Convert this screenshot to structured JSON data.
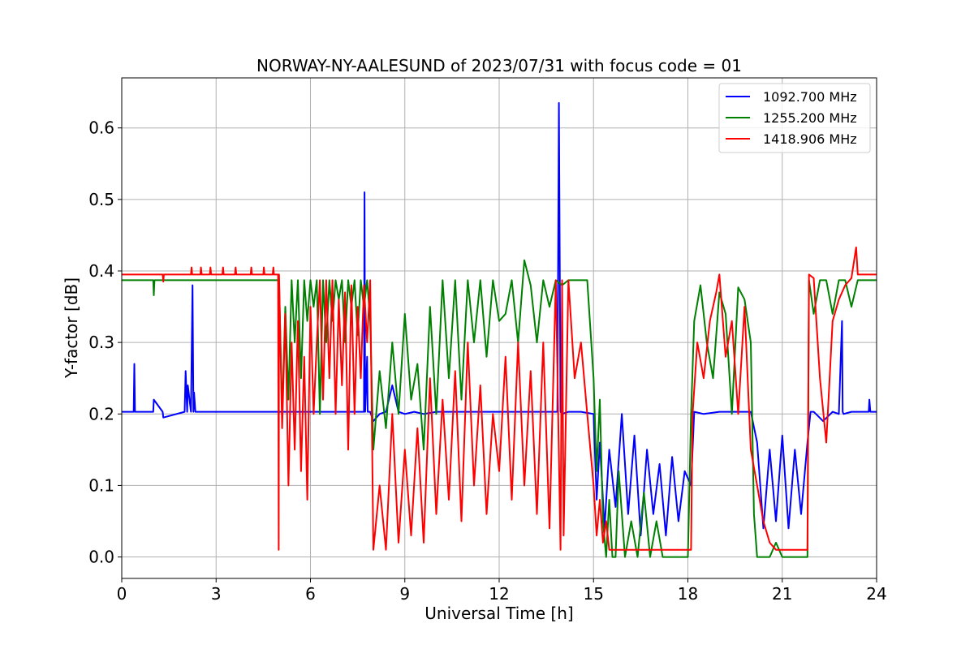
{
  "chart_data": {
    "type": "line",
    "title": "NORWAY-NY-AALESUND of 2023/07/31 with focus code = 01",
    "xlabel": "Universal Time [h]",
    "ylabel": "Y-factor [dB]",
    "xlim": [
      0,
      24
    ],
    "ylim": [
      -0.03,
      0.67
    ],
    "xticks": [
      0,
      3,
      6,
      9,
      12,
      15,
      18,
      21,
      24
    ],
    "yticks": [
      0.0,
      0.1,
      0.2,
      0.3,
      0.4,
      0.5,
      0.6
    ],
    "ytick_labels": [
      "0.0",
      "0.1",
      "0.2",
      "0.3",
      "0.4",
      "0.5",
      "0.6"
    ],
    "grid": true,
    "legend_position": "top-right",
    "series": [
      {
        "name": "1092.700 MHz",
        "color": "#0000ff",
        "x": [
          0,
          0.38,
          0.4,
          0.42,
          1.0,
          1.02,
          1.3,
          1.32,
          2.0,
          2.03,
          2.08,
          2.1,
          2.2,
          2.25,
          2.28,
          2.3,
          2.34,
          2.5,
          5.0,
          5.05,
          5.3,
          6.0,
          7.6,
          7.7,
          7.72,
          7.74,
          7.8,
          7.82,
          7.9,
          8.0,
          8.2,
          8.4,
          8.6,
          8.8,
          9.0,
          9.3,
          9.6,
          10.0,
          10.5,
          11.0,
          11.5,
          12.0,
          12.5,
          13.0,
          13.5,
          13.85,
          13.9,
          13.95,
          14.0,
          14.2,
          14.6,
          15.0,
          15.1,
          15.2,
          15.35,
          15.5,
          15.7,
          15.9,
          16.1,
          16.3,
          16.5,
          16.7,
          16.9,
          17.1,
          17.3,
          17.5,
          17.7,
          17.9,
          18.1,
          18.2,
          18.5,
          19.0,
          19.5,
          20.0,
          20.2,
          20.4,
          20.6,
          20.8,
          21.0,
          21.2,
          21.4,
          21.6,
          21.8,
          21.9,
          22.0,
          22.3,
          22.6,
          22.8,
          22.9,
          22.92,
          22.95,
          23.2,
          23.5,
          23.75,
          23.77,
          23.8,
          24.0
        ],
        "y": [
          0.203,
          0.203,
          0.27,
          0.203,
          0.203,
          0.22,
          0.203,
          0.195,
          0.203,
          0.26,
          0.203,
          0.24,
          0.203,
          0.38,
          0.203,
          0.23,
          0.203,
          0.203,
          0.203,
          0.203,
          0.203,
          0.203,
          0.203,
          0.203,
          0.51,
          0.203,
          0.28,
          0.203,
          0.203,
          0.19,
          0.2,
          0.203,
          0.24,
          0.203,
          0.2,
          0.203,
          0.2,
          0.203,
          0.203,
          0.203,
          0.203,
          0.203,
          0.203,
          0.203,
          0.203,
          0.203,
          0.635,
          0.203,
          0.2,
          0.203,
          0.203,
          0.2,
          0.08,
          0.16,
          0.04,
          0.15,
          0.07,
          0.2,
          0.06,
          0.17,
          0.03,
          0.15,
          0.06,
          0.13,
          0.03,
          0.14,
          0.05,
          0.12,
          0.1,
          0.203,
          0.2,
          0.203,
          0.203,
          0.203,
          0.16,
          0.04,
          0.15,
          0.05,
          0.17,
          0.04,
          0.15,
          0.06,
          0.16,
          0.203,
          0.203,
          0.19,
          0.203,
          0.2,
          0.33,
          0.203,
          0.2,
          0.203,
          0.203,
          0.203,
          0.22,
          0.203,
          0.203
        ]
      },
      {
        "name": "1255.200 MHz",
        "color": "#008000",
        "x": [
          0,
          1.0,
          1.02,
          1.04,
          1.3,
          1.32,
          1.34,
          4.95,
          5.0,
          5.1,
          5.2,
          5.3,
          5.4,
          5.5,
          5.6,
          5.7,
          5.8,
          5.9,
          6.0,
          6.1,
          6.2,
          6.3,
          6.4,
          6.5,
          6.6,
          6.7,
          6.8,
          6.9,
          7.0,
          7.1,
          7.2,
          7.3,
          7.4,
          7.5,
          7.6,
          7.7,
          7.8,
          7.9,
          8.0,
          8.2,
          8.4,
          8.6,
          8.8,
          9.0,
          9.2,
          9.4,
          9.6,
          9.8,
          10.0,
          10.2,
          10.4,
          10.6,
          10.8,
          11.0,
          11.2,
          11.4,
          11.6,
          11.8,
          12.0,
          12.2,
          12.4,
          12.6,
          12.8,
          13.0,
          13.2,
          13.4,
          13.6,
          13.8,
          14.0,
          14.2,
          14.4,
          14.6,
          14.8,
          15.0,
          15.1,
          15.2,
          15.3,
          15.4,
          15.5,
          15.6,
          15.7,
          15.8,
          16.0,
          16.2,
          16.4,
          16.6,
          16.8,
          17.0,
          17.2,
          17.4,
          17.6,
          17.8,
          18.0,
          18.1,
          18.2,
          18.4,
          18.6,
          18.8,
          19.0,
          19.2,
          19.4,
          19.6,
          19.8,
          20.0,
          20.1,
          20.2,
          20.4,
          20.6,
          20.8,
          21.0,
          21.2,
          21.4,
          21.6,
          21.8,
          21.85,
          22.0,
          22.2,
          22.4,
          22.6,
          22.8,
          23.0,
          23.2,
          23.4,
          23.6,
          23.8,
          24.0
        ],
        "y": [
          0.387,
          0.387,
          0.366,
          0.387,
          0.387,
          0.387,
          0.387,
          0.387,
          0.387,
          0.2,
          0.35,
          0.22,
          0.387,
          0.3,
          0.387,
          0.25,
          0.387,
          0.33,
          0.387,
          0.35,
          0.387,
          0.2,
          0.387,
          0.3,
          0.387,
          0.33,
          0.387,
          0.36,
          0.387,
          0.3,
          0.387,
          0.35,
          0.387,
          0.31,
          0.387,
          0.35,
          0.387,
          0.33,
          0.15,
          0.26,
          0.18,
          0.3,
          0.2,
          0.34,
          0.22,
          0.27,
          0.15,
          0.35,
          0.2,
          0.387,
          0.25,
          0.387,
          0.22,
          0.387,
          0.3,
          0.387,
          0.28,
          0.387,
          0.33,
          0.34,
          0.387,
          0.3,
          0.415,
          0.38,
          0.3,
          0.387,
          0.35,
          0.387,
          0.38,
          0.387,
          0.387,
          0.387,
          0.387,
          0.25,
          0.12,
          0.22,
          0.05,
          0.0,
          0.08,
          0.0,
          0.0,
          0.12,
          0.0,
          0.05,
          0.0,
          0.09,
          0.0,
          0.05,
          0.0,
          0.0,
          0.0,
          0.0,
          0.0,
          0.2,
          0.33,
          0.38,
          0.3,
          0.25,
          0.37,
          0.34,
          0.2,
          0.377,
          0.36,
          0.3,
          0.06,
          0.0,
          0.0,
          0.0,
          0.02,
          0.0,
          0.0,
          0.0,
          0.0,
          0.0,
          0.387,
          0.34,
          0.387,
          0.387,
          0.34,
          0.387,
          0.387,
          0.35,
          0.387,
          0.387,
          0.387,
          0.387
        ]
      },
      {
        "name": "1418.906 MHz",
        "color": "#ff0000",
        "x": [
          0,
          1.3,
          1.32,
          1.34,
          2.2,
          2.22,
          2.24,
          2.5,
          2.52,
          2.54,
          2.8,
          2.82,
          2.84,
          3.2,
          3.22,
          3.24,
          3.6,
          3.62,
          3.64,
          4.1,
          4.12,
          4.14,
          4.5,
          4.52,
          4.54,
          4.8,
          4.82,
          4.84,
          4.97,
          4.99,
          5.0,
          5.1,
          5.2,
          5.3,
          5.4,
          5.5,
          5.6,
          5.7,
          5.8,
          5.9,
          6.0,
          6.1,
          6.2,
          6.3,
          6.4,
          6.5,
          6.6,
          6.7,
          6.8,
          6.9,
          7.0,
          7.1,
          7.2,
          7.3,
          7.4,
          7.5,
          7.6,
          7.7,
          7.8,
          7.9,
          8.0,
          8.2,
          8.4,
          8.6,
          8.8,
          9.0,
          9.2,
          9.4,
          9.6,
          9.8,
          10.0,
          10.2,
          10.4,
          10.6,
          10.8,
          11.0,
          11.2,
          11.4,
          11.6,
          11.8,
          12.0,
          12.2,
          12.4,
          12.6,
          12.8,
          13.0,
          13.2,
          13.4,
          13.6,
          13.8,
          13.95,
          14.0,
          14.05,
          14.2,
          14.4,
          14.6,
          14.8,
          15.0,
          15.1,
          15.2,
          15.3,
          15.4,
          15.5,
          15.6,
          15.8,
          16.2,
          16.6,
          17.0,
          17.4,
          17.8,
          18.1,
          18.15,
          18.3,
          18.5,
          18.7,
          18.9,
          19.0,
          19.2,
          19.4,
          19.6,
          19.8,
          20.0,
          20.2,
          20.4,
          20.6,
          20.8,
          21.0,
          21.2,
          21.4,
          21.6,
          21.8,
          21.85,
          22.0,
          22.2,
          22.4,
          22.6,
          22.8,
          23.0,
          23.2,
          23.35,
          23.4,
          23.6,
          23.8,
          24.0
        ],
        "y": [
          0.395,
          0.395,
          0.385,
          0.395,
          0.395,
          0.405,
          0.395,
          0.395,
          0.405,
          0.395,
          0.395,
          0.405,
          0.395,
          0.395,
          0.405,
          0.395,
          0.395,
          0.405,
          0.395,
          0.395,
          0.405,
          0.395,
          0.395,
          0.405,
          0.395,
          0.395,
          0.405,
          0.395,
          0.395,
          0.01,
          0.395,
          0.18,
          0.34,
          0.1,
          0.3,
          0.15,
          0.33,
          0.12,
          0.28,
          0.08,
          0.35,
          0.2,
          0.3,
          0.387,
          0.22,
          0.387,
          0.25,
          0.387,
          0.2,
          0.36,
          0.24,
          0.37,
          0.15,
          0.38,
          0.2,
          0.35,
          0.25,
          0.38,
          0.3,
          0.387,
          0.01,
          0.1,
          0.01,
          0.2,
          0.02,
          0.15,
          0.03,
          0.18,
          0.02,
          0.25,
          0.06,
          0.22,
          0.08,
          0.26,
          0.05,
          0.3,
          0.1,
          0.24,
          0.06,
          0.2,
          0.12,
          0.28,
          0.08,
          0.3,
          0.1,
          0.26,
          0.06,
          0.3,
          0.04,
          0.387,
          0.01,
          0.387,
          0.03,
          0.387,
          0.25,
          0.3,
          0.2,
          0.1,
          0.03,
          0.08,
          0.02,
          0.05,
          0.01,
          0.01,
          0.01,
          0.01,
          0.01,
          0.01,
          0.01,
          0.01,
          0.01,
          0.2,
          0.3,
          0.25,
          0.33,
          0.37,
          0.395,
          0.28,
          0.33,
          0.2,
          0.35,
          0.15,
          0.1,
          0.05,
          0.02,
          0.01,
          0.01,
          0.01,
          0.01,
          0.01,
          0.01,
          0.395,
          0.39,
          0.25,
          0.16,
          0.33,
          0.36,
          0.38,
          0.39,
          0.433,
          0.395,
          0.395,
          0.395,
          0.395
        ]
      }
    ]
  }
}
